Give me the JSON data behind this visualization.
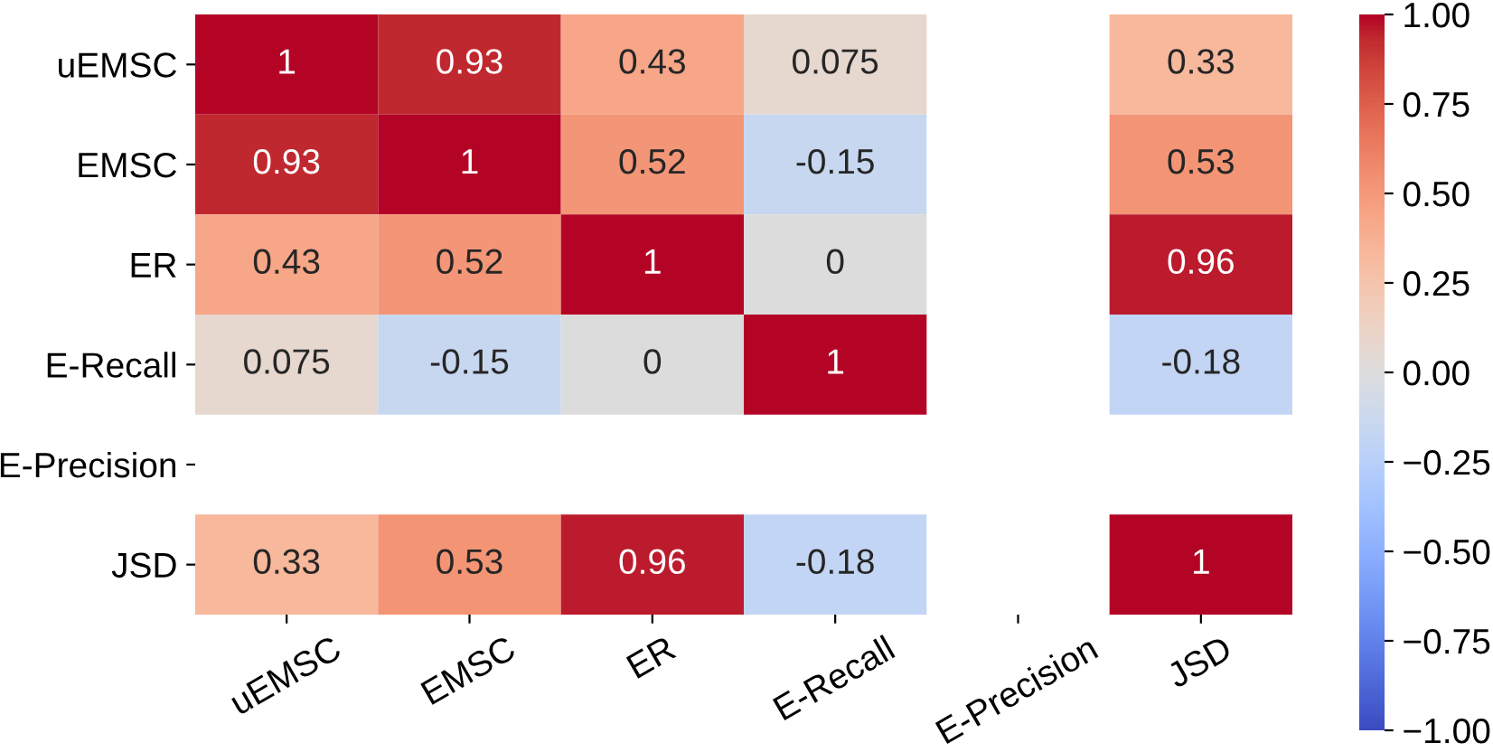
{
  "chart_data": {
    "type": "heatmap",
    "categories": [
      "uEMSC",
      "EMSC",
      "ER",
      "E-Recall",
      "E-Precision",
      "JSD"
    ],
    "y_categories": [
      "uEMSC",
      "EMSC",
      "ER",
      "E-Recall",
      "E-Precision",
      "JSD"
    ],
    "cells": [
      [
        1,
        0.93,
        0.43,
        0.075,
        null,
        0.33
      ],
      [
        0.93,
        1,
        0.52,
        -0.15,
        null,
        0.53
      ],
      [
        0.43,
        0.52,
        1,
        0,
        null,
        0.96
      ],
      [
        0.075,
        -0.15,
        0,
        1,
        null,
        -0.18
      ],
      [
        null,
        null,
        null,
        null,
        null,
        null
      ],
      [
        0.33,
        0.53,
        0.96,
        -0.18,
        null,
        1
      ]
    ],
    "clim": [
      -1,
      1
    ],
    "cticks": [
      {
        "value": 1,
        "label": "1.00"
      },
      {
        "value": 0.75,
        "label": "0.75"
      },
      {
        "value": 0.5,
        "label": "0.50"
      },
      {
        "value": 0.25,
        "label": "0.25"
      },
      {
        "value": 0,
        "label": "0.00"
      },
      {
        "value": -0.25,
        "label": "−0.25"
      },
      {
        "value": -0.5,
        "label": "−0.50"
      },
      {
        "value": -0.75,
        "label": "−0.75"
      },
      {
        "value": -1,
        "label": "−1.00"
      }
    ],
    "data_labels": true
  }
}
